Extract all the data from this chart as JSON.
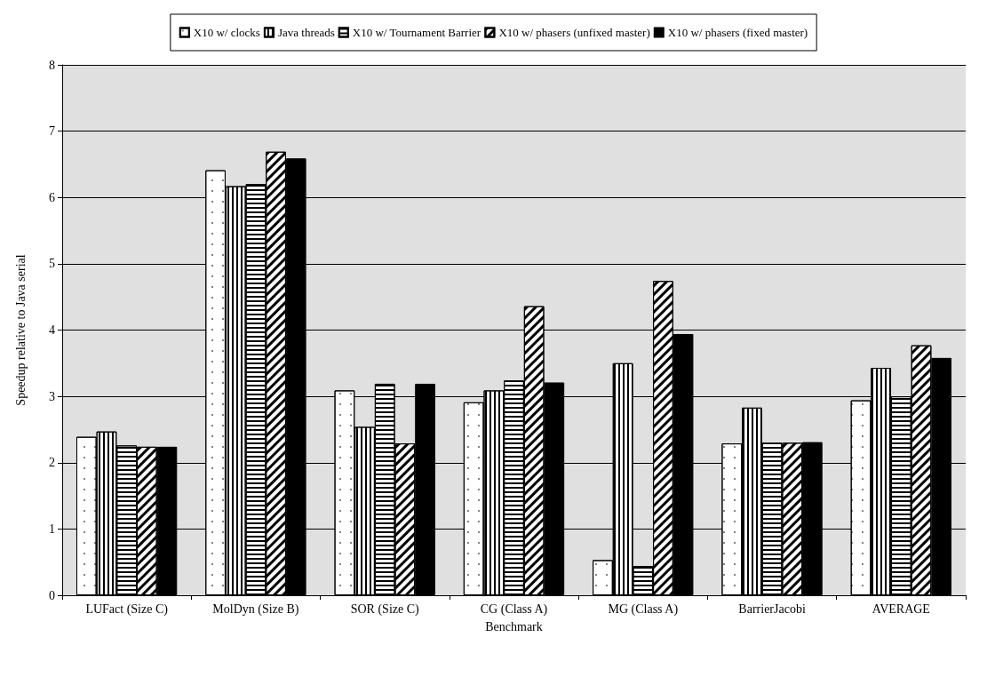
{
  "chart_data": {
    "type": "bar",
    "xlabel": "Benchmark",
    "ylabel": "Speedup relative to Java serial",
    "categories": [
      "LUFact (Size C)",
      "MolDyn (Size B)",
      "SOR (Size C)",
      "CG (Class A)",
      "MG (Class A)",
      "BarrierJacobi",
      "AVERAGE"
    ],
    "series": [
      {
        "name": "X10 w/ clocks",
        "color": "#ffffff",
        "values": [
          2.39,
          6.41,
          3.09,
          2.91,
          0.53,
          2.29,
          2.94
        ]
      },
      {
        "name": "Java threads",
        "color": "#ffffff",
        "values": [
          2.47,
          6.17,
          2.54,
          3.09,
          3.5,
          2.83,
          3.43
        ]
      },
      {
        "name": "X10 w/ Tournament Barrier",
        "color": "#ffffff",
        "values": [
          2.26,
          6.2,
          3.19,
          3.24,
          0.44,
          2.3,
          3.0
        ]
      },
      {
        "name": "X10 w/ phasers (unfixed master)",
        "color": "#ffffff",
        "values": [
          2.24,
          6.69,
          2.29,
          4.36,
          4.74,
          2.3,
          3.77
        ]
      },
      {
        "name": "X10 w/ phasers (fixed master)",
        "color": "#000000",
        "values": [
          2.24,
          6.59,
          3.19,
          3.21,
          3.94,
          2.31,
          3.58
        ]
      }
    ],
    "ylim": [
      0,
      8
    ],
    "yticks": [
      0,
      1,
      2,
      3,
      4,
      5,
      6,
      7,
      8
    ],
    "grid": "y",
    "legend": "top"
  }
}
